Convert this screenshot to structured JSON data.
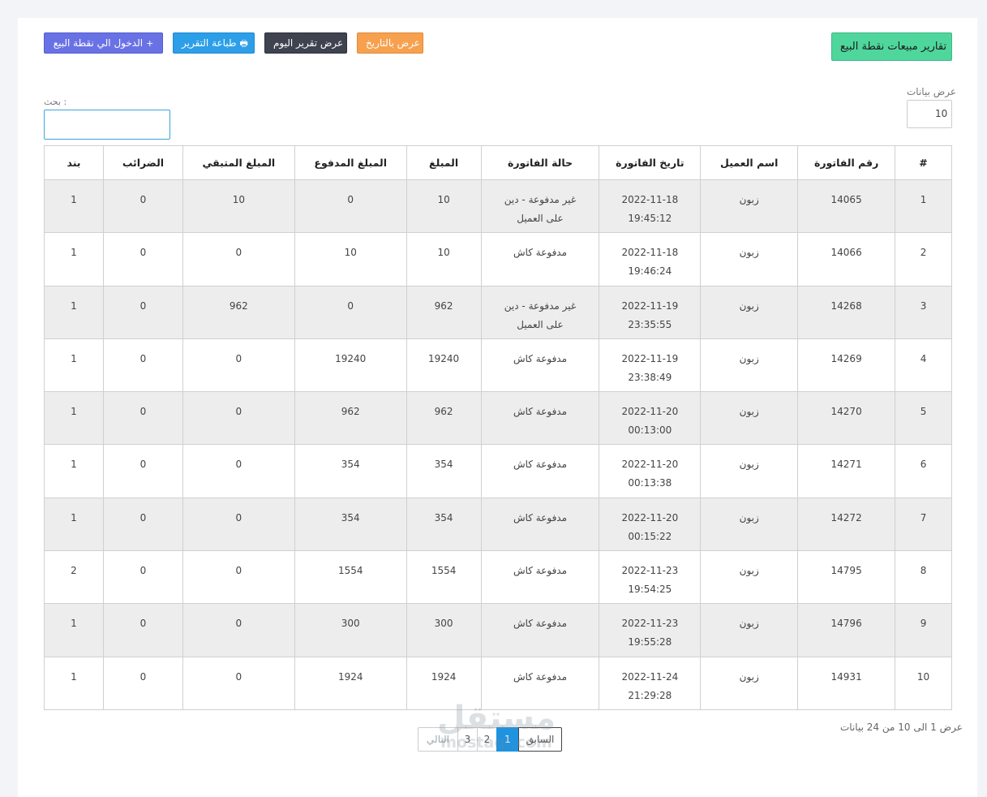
{
  "header": {
    "title_button": "تقارير مبيعات نقطة البيع",
    "date_button": "عرض بالتاريخ",
    "today_button": "عرض تقرير اليوم",
    "print_button": "طباعة التقرير",
    "print_icon": "printer-icon",
    "enter_button": "الدخول الي نقطة البيع",
    "enter_icon": "plus-icon"
  },
  "controls": {
    "length_label": "عرض بيانات",
    "length_value": "10",
    "search_label": "بحث :",
    "search_value": ""
  },
  "table": {
    "columns": [
      "#",
      "رقم الفاتورة",
      "اسم العميل",
      "تاريخ الفاتورة",
      "حالة الفاتورة",
      "المبلغ",
      "المبلغ المدفوع",
      "المبلغ المتبقي",
      "الضرائب",
      "بند"
    ],
    "rows": [
      {
        "n": "1",
        "invoice": "14065",
        "customer": "زبون",
        "date": "2022-11-18",
        "time": "19:45:12",
        "status1": "غير مدفوعة - دين",
        "status2": "على العميل",
        "amount": "10",
        "paid": "0",
        "remaining": "10",
        "taxes": "0",
        "items": "1"
      },
      {
        "n": "2",
        "invoice": "14066",
        "customer": "زبون",
        "date": "2022-11-18",
        "time": "19:46:24",
        "status1": "مدفوعة كاش",
        "status2": "",
        "amount": "10",
        "paid": "10",
        "remaining": "0",
        "taxes": "0",
        "items": "1"
      },
      {
        "n": "3",
        "invoice": "14268",
        "customer": "زبون",
        "date": "2022-11-19",
        "time": "23:35:55",
        "status1": "غير مدفوعة - دين",
        "status2": "على العميل",
        "amount": "962",
        "paid": "0",
        "remaining": "962",
        "taxes": "0",
        "items": "1"
      },
      {
        "n": "4",
        "invoice": "14269",
        "customer": "زبون",
        "date": "2022-11-19",
        "time": "23:38:49",
        "status1": "مدفوعة كاش",
        "status2": "",
        "amount": "19240",
        "paid": "19240",
        "remaining": "0",
        "taxes": "0",
        "items": "1"
      },
      {
        "n": "5",
        "invoice": "14270",
        "customer": "زبون",
        "date": "2022-11-20",
        "time": "00:13:00",
        "status1": "مدفوعة كاش",
        "status2": "",
        "amount": "962",
        "paid": "962",
        "remaining": "0",
        "taxes": "0",
        "items": "1"
      },
      {
        "n": "6",
        "invoice": "14271",
        "customer": "زبون",
        "date": "2022-11-20",
        "time": "00:13:38",
        "status1": "مدفوعة كاش",
        "status2": "",
        "amount": "354",
        "paid": "354",
        "remaining": "0",
        "taxes": "0",
        "items": "1"
      },
      {
        "n": "7",
        "invoice": "14272",
        "customer": "زبون",
        "date": "2022-11-20",
        "time": "00:15:22",
        "status1": "مدفوعة كاش",
        "status2": "",
        "amount": "354",
        "paid": "354",
        "remaining": "0",
        "taxes": "0",
        "items": "1"
      },
      {
        "n": "8",
        "invoice": "14795",
        "customer": "زبون",
        "date": "2022-11-23",
        "time": "19:54:25",
        "status1": "مدفوعة كاش",
        "status2": "",
        "amount": "1554",
        "paid": "1554",
        "remaining": "0",
        "taxes": "0",
        "items": "2"
      },
      {
        "n": "9",
        "invoice": "14796",
        "customer": "زبون",
        "date": "2022-11-23",
        "time": "19:55:28",
        "status1": "مدفوعة كاش",
        "status2": "",
        "amount": "300",
        "paid": "300",
        "remaining": "0",
        "taxes": "0",
        "items": "1"
      },
      {
        "n": "10",
        "invoice": "14931",
        "customer": "زبون",
        "date": "2022-11-24",
        "time": "21:29:28",
        "status1": "مدفوعة كاش",
        "status2": "",
        "amount": "1924",
        "paid": "1924",
        "remaining": "0",
        "taxes": "0",
        "items": "1"
      }
    ]
  },
  "footer": {
    "info": "عرض 1 الى 10 من 24 بيانات",
    "prev": "السابق",
    "pages": [
      "1",
      "2",
      "3"
    ],
    "next": "التالي",
    "current_page": "1"
  },
  "watermark": {
    "ar": "مستقل",
    "en": "mostaql.com"
  },
  "colors": {
    "title_button": "#4fd69c",
    "date_button": "#f7a14f",
    "today_button": "#3f4350",
    "print_button": "#2d9fe8",
    "enter_button": "#6972e5",
    "active_page": "#1f93e0"
  }
}
